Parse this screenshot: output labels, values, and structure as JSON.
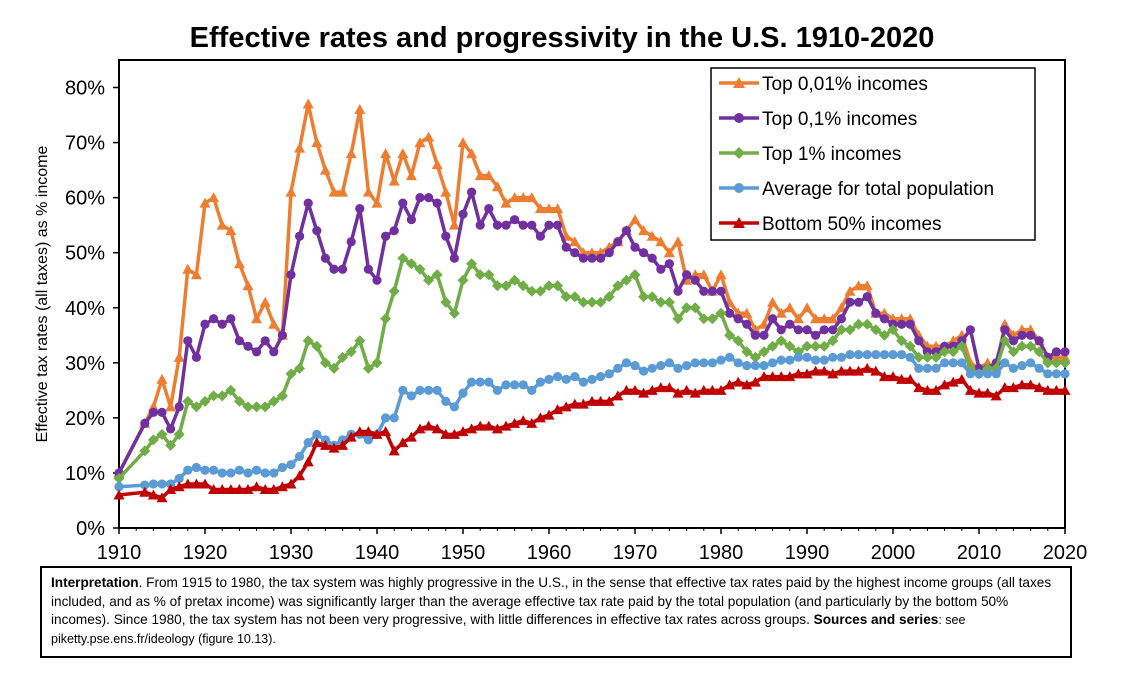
{
  "chart_data": {
    "type": "line",
    "title": "Effective rates and progressivity in the U.S. 1910-2020",
    "xlabel": "",
    "ylabel": "Effective tax rates (all taxes) as % income",
    "xlim": [
      1910,
      2020
    ],
    "ylim": [
      0,
      0.85
    ],
    "x_ticks": [
      "1910",
      "1920",
      "1930",
      "1940",
      "1950",
      "1960",
      "1970",
      "1980",
      "1990",
      "2000",
      "2010",
      "2020"
    ],
    "y_ticks": [
      "0%",
      "10%",
      "20%",
      "30%",
      "40%",
      "50%",
      "60%",
      "70%",
      "80%"
    ],
    "grid": false,
    "legend_position": "top-right",
    "series": [
      {
        "name": "Top 0,01% incomes",
        "color": "#ED7D31",
        "marker": "triangle",
        "x": [
          1910,
          1913,
          1914,
          1915,
          1916,
          1917,
          1918,
          1919,
          1920,
          1921,
          1922,
          1923,
          1924,
          1925,
          1926,
          1927,
          1928,
          1929,
          1930,
          1931,
          1932,
          1933,
          1934,
          1935,
          1936,
          1937,
          1938,
          1939,
          1940,
          1941,
          1942,
          1943,
          1944,
          1945,
          1946,
          1947,
          1948,
          1949,
          1950,
          1951,
          1952,
          1953,
          1954,
          1955,
          1956,
          1957,
          1958,
          1959,
          1960,
          1961,
          1962,
          1963,
          1964,
          1965,
          1966,
          1967,
          1968,
          1969,
          1970,
          1971,
          1972,
          1973,
          1974,
          1975,
          1976,
          1977,
          1978,
          1979,
          1980,
          1981,
          1982,
          1983,
          1984,
          1985,
          1986,
          1987,
          1988,
          1989,
          1990,
          1991,
          1992,
          1993,
          1994,
          1995,
          1996,
          1997,
          1998,
          1999,
          2000,
          2001,
          2002,
          2003,
          2004,
          2005,
          2006,
          2007,
          2008,
          2009,
          2010,
          2011,
          2012,
          2013,
          2014,
          2015,
          2016,
          2017,
          2018,
          2019,
          2020
        ],
        "y": [
          0.1,
          0.19,
          0.22,
          0.27,
          0.22,
          0.31,
          0.47,
          0.46,
          0.59,
          0.6,
          0.55,
          0.54,
          0.48,
          0.44,
          0.38,
          0.41,
          0.37,
          0.35,
          0.61,
          0.69,
          0.77,
          0.7,
          0.65,
          0.61,
          0.61,
          0.68,
          0.76,
          0.61,
          0.59,
          0.68,
          0.63,
          0.68,
          0.64,
          0.7,
          0.71,
          0.66,
          0.61,
          0.55,
          0.7,
          0.68,
          0.64,
          0.64,
          0.62,
          0.59,
          0.6,
          0.6,
          0.6,
          0.58,
          0.58,
          0.58,
          0.53,
          0.52,
          0.5,
          0.5,
          0.5,
          0.51,
          0.52,
          0.54,
          0.56,
          0.54,
          0.53,
          0.52,
          0.5,
          0.52,
          0.45,
          0.46,
          0.46,
          0.43,
          0.46,
          0.41,
          0.39,
          0.39,
          0.36,
          0.37,
          0.41,
          0.39,
          0.4,
          0.38,
          0.4,
          0.38,
          0.38,
          0.38,
          0.4,
          0.43,
          0.44,
          0.44,
          0.39,
          0.39,
          0.38,
          0.38,
          0.38,
          0.35,
          0.33,
          0.33,
          0.33,
          0.34,
          0.35,
          0.3,
          0.29,
          0.3,
          0.29,
          0.37,
          0.35,
          0.36,
          0.36,
          0.34,
          0.31,
          0.31,
          0.31
        ]
      },
      {
        "name": "Top 0,1% incomes",
        "color": "#7030A0",
        "marker": "circle",
        "x": [
          1910,
          1913,
          1914,
          1915,
          1916,
          1917,
          1918,
          1919,
          1920,
          1921,
          1922,
          1923,
          1924,
          1925,
          1926,
          1927,
          1928,
          1929,
          1930,
          1931,
          1932,
          1933,
          1934,
          1935,
          1936,
          1937,
          1938,
          1939,
          1940,
          1941,
          1942,
          1943,
          1944,
          1945,
          1946,
          1947,
          1948,
          1949,
          1950,
          1951,
          1952,
          1953,
          1954,
          1955,
          1956,
          1957,
          1958,
          1959,
          1960,
          1961,
          1962,
          1963,
          1964,
          1965,
          1966,
          1967,
          1968,
          1969,
          1970,
          1971,
          1972,
          1973,
          1974,
          1975,
          1976,
          1977,
          1978,
          1979,
          1980,
          1981,
          1982,
          1983,
          1984,
          1985,
          1986,
          1987,
          1988,
          1989,
          1990,
          1991,
          1992,
          1993,
          1994,
          1995,
          1996,
          1997,
          1998,
          1999,
          2000,
          2001,
          2002,
          2003,
          2004,
          2005,
          2006,
          2007,
          2008,
          2009,
          2010,
          2011,
          2012,
          2013,
          2014,
          2015,
          2016,
          2017,
          2018,
          2019,
          2020
        ],
        "y": [
          0.1,
          0.19,
          0.21,
          0.21,
          0.18,
          0.22,
          0.34,
          0.31,
          0.37,
          0.38,
          0.37,
          0.38,
          0.34,
          0.33,
          0.32,
          0.34,
          0.32,
          0.35,
          0.46,
          0.53,
          0.59,
          0.54,
          0.49,
          0.47,
          0.47,
          0.52,
          0.58,
          0.47,
          0.45,
          0.53,
          0.54,
          0.59,
          0.56,
          0.6,
          0.6,
          0.59,
          0.53,
          0.49,
          0.57,
          0.61,
          0.55,
          0.58,
          0.55,
          0.55,
          0.56,
          0.55,
          0.55,
          0.53,
          0.55,
          0.55,
          0.51,
          0.5,
          0.49,
          0.49,
          0.49,
          0.5,
          0.52,
          0.54,
          0.51,
          0.5,
          0.49,
          0.47,
          0.48,
          0.43,
          0.46,
          0.45,
          0.43,
          0.43,
          0.43,
          0.39,
          0.38,
          0.37,
          0.35,
          0.35,
          0.38,
          0.36,
          0.37,
          0.36,
          0.36,
          0.35,
          0.36,
          0.36,
          0.38,
          0.41,
          0.41,
          0.42,
          0.39,
          0.38,
          0.37,
          0.37,
          0.37,
          0.34,
          0.32,
          0.32,
          0.33,
          0.33,
          0.34,
          0.36,
          0.29,
          0.29,
          0.3,
          0.36,
          0.34,
          0.35,
          0.35,
          0.34,
          0.31,
          0.32,
          0.32
        ]
      },
      {
        "name": "Top 1% incomes",
        "color": "#70AD47",
        "marker": "diamond",
        "x": [
          1910,
          1913,
          1914,
          1915,
          1916,
          1917,
          1918,
          1919,
          1920,
          1921,
          1922,
          1923,
          1924,
          1925,
          1926,
          1927,
          1928,
          1929,
          1930,
          1931,
          1932,
          1933,
          1934,
          1935,
          1936,
          1937,
          1938,
          1939,
          1940,
          1941,
          1942,
          1943,
          1944,
          1945,
          1946,
          1947,
          1948,
          1949,
          1950,
          1951,
          1952,
          1953,
          1954,
          1955,
          1956,
          1957,
          1958,
          1959,
          1960,
          1961,
          1962,
          1963,
          1964,
          1965,
          1966,
          1967,
          1968,
          1969,
          1970,
          1971,
          1972,
          1973,
          1974,
          1975,
          1976,
          1977,
          1978,
          1979,
          1980,
          1981,
          1982,
          1983,
          1984,
          1985,
          1986,
          1987,
          1988,
          1989,
          1990,
          1991,
          1992,
          1993,
          1994,
          1995,
          1996,
          1997,
          1998,
          1999,
          2000,
          2001,
          2002,
          2003,
          2004,
          2005,
          2006,
          2007,
          2008,
          2009,
          2010,
          2011,
          2012,
          2013,
          2014,
          2015,
          2016,
          2017,
          2018,
          2019,
          2020
        ],
        "y": [
          0.09,
          0.14,
          0.16,
          0.17,
          0.15,
          0.17,
          0.23,
          0.22,
          0.23,
          0.24,
          0.24,
          0.25,
          0.23,
          0.22,
          0.22,
          0.22,
          0.23,
          0.24,
          0.28,
          0.29,
          0.34,
          0.33,
          0.3,
          0.29,
          0.31,
          0.32,
          0.34,
          0.29,
          0.3,
          0.38,
          0.43,
          0.49,
          0.48,
          0.47,
          0.45,
          0.46,
          0.41,
          0.39,
          0.45,
          0.48,
          0.46,
          0.46,
          0.44,
          0.44,
          0.45,
          0.44,
          0.43,
          0.43,
          0.44,
          0.44,
          0.42,
          0.42,
          0.41,
          0.41,
          0.41,
          0.42,
          0.44,
          0.45,
          0.46,
          0.42,
          0.42,
          0.41,
          0.41,
          0.38,
          0.4,
          0.4,
          0.38,
          0.38,
          0.39,
          0.35,
          0.34,
          0.32,
          0.31,
          0.32,
          0.33,
          0.34,
          0.33,
          0.32,
          0.33,
          0.33,
          0.33,
          0.34,
          0.36,
          0.36,
          0.37,
          0.37,
          0.36,
          0.35,
          0.36,
          0.34,
          0.33,
          0.31,
          0.31,
          0.31,
          0.32,
          0.32,
          0.33,
          0.29,
          0.28,
          0.29,
          0.29,
          0.34,
          0.32,
          0.33,
          0.33,
          0.32,
          0.3,
          0.3,
          0.3
        ]
      },
      {
        "name": "Average for total population",
        "color": "#5B9BD5",
        "marker": "circle",
        "x": [
          1910,
          1913,
          1914,
          1915,
          1916,
          1917,
          1918,
          1919,
          1920,
          1921,
          1922,
          1923,
          1924,
          1925,
          1926,
          1927,
          1928,
          1929,
          1930,
          1931,
          1932,
          1933,
          1934,
          1935,
          1936,
          1937,
          1938,
          1939,
          1940,
          1941,
          1942,
          1943,
          1944,
          1945,
          1946,
          1947,
          1948,
          1949,
          1950,
          1951,
          1952,
          1953,
          1954,
          1955,
          1956,
          1957,
          1958,
          1959,
          1960,
          1961,
          1962,
          1963,
          1964,
          1965,
          1966,
          1967,
          1968,
          1969,
          1970,
          1971,
          1972,
          1973,
          1974,
          1975,
          1976,
          1977,
          1978,
          1979,
          1980,
          1981,
          1982,
          1983,
          1984,
          1985,
          1986,
          1987,
          1988,
          1989,
          1990,
          1991,
          1992,
          1993,
          1994,
          1995,
          1996,
          1997,
          1998,
          1999,
          2000,
          2001,
          2002,
          2003,
          2004,
          2005,
          2006,
          2007,
          2008,
          2009,
          2010,
          2011,
          2012,
          2013,
          2014,
          2015,
          2016,
          2017,
          2018,
          2019,
          2020
        ],
        "y": [
          0.075,
          0.078,
          0.08,
          0.08,
          0.08,
          0.09,
          0.105,
          0.11,
          0.105,
          0.105,
          0.1,
          0.1,
          0.105,
          0.1,
          0.105,
          0.1,
          0.1,
          0.11,
          0.115,
          0.13,
          0.155,
          0.17,
          0.16,
          0.15,
          0.16,
          0.17,
          0.17,
          0.16,
          0.17,
          0.2,
          0.2,
          0.25,
          0.24,
          0.25,
          0.25,
          0.25,
          0.23,
          0.22,
          0.245,
          0.265,
          0.265,
          0.265,
          0.25,
          0.26,
          0.26,
          0.26,
          0.25,
          0.265,
          0.27,
          0.275,
          0.27,
          0.275,
          0.265,
          0.27,
          0.275,
          0.28,
          0.29,
          0.3,
          0.295,
          0.285,
          0.29,
          0.295,
          0.3,
          0.29,
          0.295,
          0.3,
          0.3,
          0.3,
          0.305,
          0.31,
          0.3,
          0.295,
          0.295,
          0.295,
          0.3,
          0.305,
          0.305,
          0.31,
          0.31,
          0.305,
          0.305,
          0.31,
          0.31,
          0.315,
          0.315,
          0.315,
          0.315,
          0.315,
          0.315,
          0.315,
          0.31,
          0.29,
          0.29,
          0.29,
          0.3,
          0.3,
          0.3,
          0.28,
          0.28,
          0.28,
          0.28,
          0.3,
          0.29,
          0.295,
          0.3,
          0.29,
          0.28,
          0.28,
          0.28
        ]
      },
      {
        "name": "Bottom 50% incomes",
        "color": "#C00000",
        "marker": "triangle",
        "x": [
          1910,
          1913,
          1914,
          1915,
          1916,
          1917,
          1918,
          1919,
          1920,
          1921,
          1922,
          1923,
          1924,
          1925,
          1926,
          1927,
          1928,
          1929,
          1930,
          1931,
          1932,
          1933,
          1934,
          1935,
          1936,
          1937,
          1938,
          1939,
          1940,
          1941,
          1942,
          1943,
          1944,
          1945,
          1946,
          1947,
          1948,
          1949,
          1950,
          1951,
          1952,
          1953,
          1954,
          1955,
          1956,
          1957,
          1958,
          1959,
          1960,
          1961,
          1962,
          1963,
          1964,
          1965,
          1966,
          1967,
          1968,
          1969,
          1970,
          1971,
          1972,
          1973,
          1974,
          1975,
          1976,
          1977,
          1978,
          1979,
          1980,
          1981,
          1982,
          1983,
          1984,
          1985,
          1986,
          1987,
          1988,
          1989,
          1990,
          1991,
          1992,
          1993,
          1994,
          1995,
          1996,
          1997,
          1998,
          1999,
          2000,
          2001,
          2002,
          2003,
          2004,
          2005,
          2006,
          2007,
          2008,
          2009,
          2010,
          2011,
          2012,
          2013,
          2014,
          2015,
          2016,
          2017,
          2018,
          2019,
          2020
        ],
        "y": [
          0.06,
          0.065,
          0.06,
          0.055,
          0.07,
          0.075,
          0.08,
          0.08,
          0.08,
          0.07,
          0.07,
          0.07,
          0.07,
          0.07,
          0.075,
          0.07,
          0.07,
          0.075,
          0.08,
          0.095,
          0.12,
          0.155,
          0.15,
          0.145,
          0.15,
          0.165,
          0.175,
          0.175,
          0.17,
          0.175,
          0.14,
          0.155,
          0.165,
          0.18,
          0.185,
          0.18,
          0.17,
          0.17,
          0.175,
          0.18,
          0.185,
          0.185,
          0.18,
          0.185,
          0.19,
          0.195,
          0.19,
          0.2,
          0.205,
          0.215,
          0.22,
          0.225,
          0.225,
          0.23,
          0.23,
          0.23,
          0.24,
          0.25,
          0.25,
          0.245,
          0.25,
          0.255,
          0.255,
          0.245,
          0.25,
          0.245,
          0.25,
          0.25,
          0.25,
          0.26,
          0.265,
          0.26,
          0.265,
          0.275,
          0.275,
          0.275,
          0.275,
          0.28,
          0.28,
          0.285,
          0.285,
          0.28,
          0.285,
          0.285,
          0.285,
          0.29,
          0.285,
          0.275,
          0.275,
          0.27,
          0.27,
          0.255,
          0.25,
          0.25,
          0.26,
          0.265,
          0.27,
          0.25,
          0.245,
          0.245,
          0.24,
          0.255,
          0.255,
          0.26,
          0.26,
          0.255,
          0.25,
          0.25,
          0.25
        ]
      }
    ]
  },
  "note": {
    "interp_label": "Interpretation",
    "interp_text": ". From 1915 to 1980, the tax system was highly progressive in the U.S., in the sense that effective tax rates paid by the highest income groups (all taxes included, and as % of pretax income) was significantly larger than the average effective tax rate paid by the total population (and particularly by the bottom 50% incomes). Since 1980, the tax system has not been very progressive, with little differences in effective tax rates across groups. ",
    "sources_label": "Sources and series",
    "sources_text": ": see piketty.pse.ens.fr/ideology (figure 10.13)."
  }
}
